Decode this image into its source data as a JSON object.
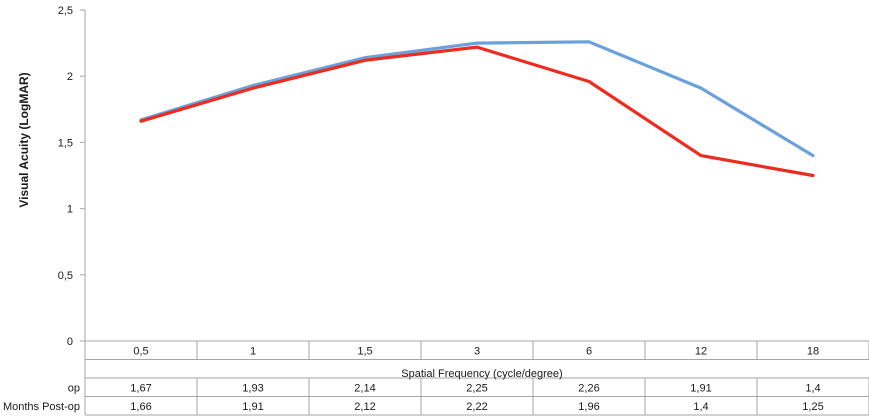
{
  "chart_data": {
    "type": "line",
    "title": "",
    "xlabel": "Spatial Frequency (cycle/degree)",
    "ylabel": "Visual Acuity (LogMAR)",
    "categories": [
      "0,5",
      "1",
      "1,5",
      "3",
      "6",
      "12",
      "18"
    ],
    "ylim": [
      0,
      2.5
    ],
    "yticks": [
      0,
      0.5,
      1,
      1.5,
      2,
      2.5
    ],
    "ytick_labels": [
      "0",
      "0,5",
      "1",
      "1,5",
      "2",
      "2,5"
    ],
    "grid": false,
    "legend": "data table below chart",
    "series": [
      {
        "name": "op",
        "color": "#6aa1dc",
        "values": [
          1.67,
          1.93,
          2.14,
          2.25,
          2.26,
          1.91,
          1.4
        ],
        "value_labels": [
          "1,67",
          "1,93",
          "2,14",
          "2,25",
          "2,26",
          "1,91",
          "1,4"
        ]
      },
      {
        "name": "Months Post-op",
        "color": "#ee2b1e",
        "values": [
          1.66,
          1.91,
          2.12,
          2.22,
          1.96,
          1.4,
          1.25
        ],
        "value_labels": [
          "1,66",
          "1,91",
          "2,12",
          "2,22",
          "1,96",
          "1,4",
          "1,25"
        ]
      }
    ]
  }
}
